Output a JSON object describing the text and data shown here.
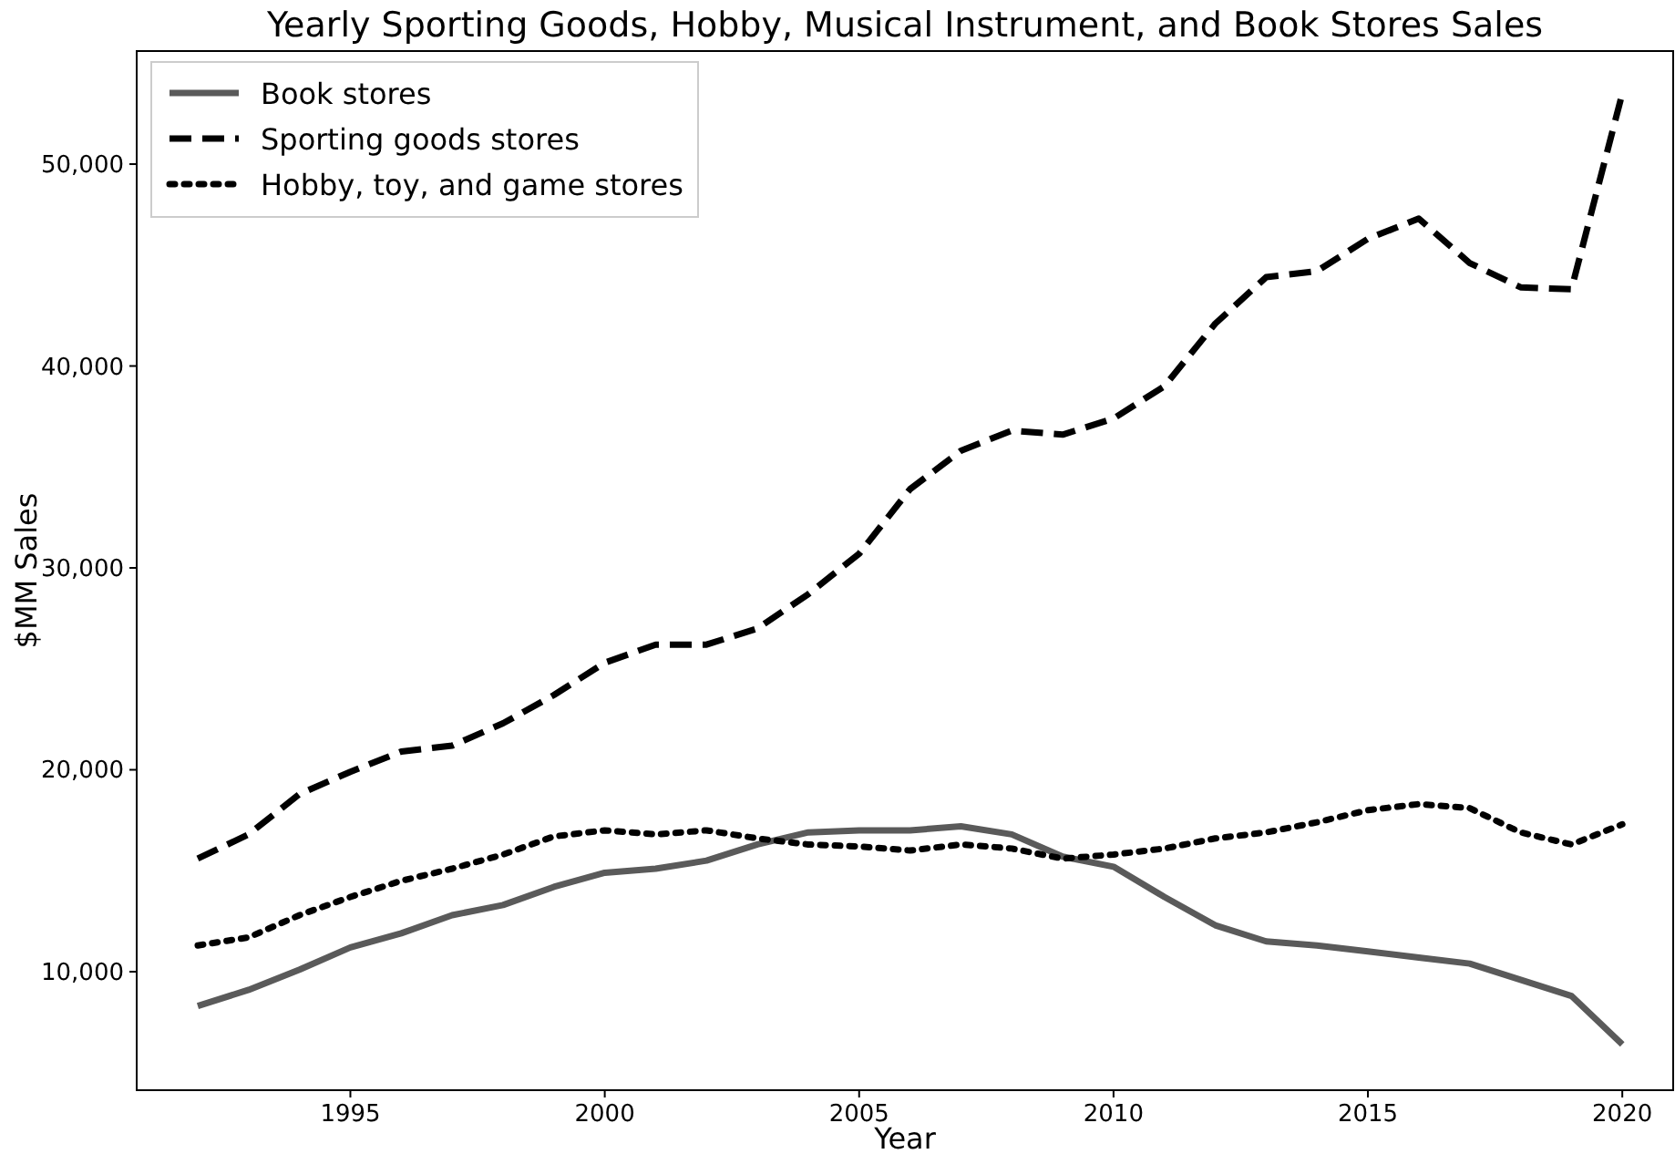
{
  "chart_data": {
    "type": "line",
    "title": "Yearly Sporting Goods, Hobby, Musical Instrument, and Book Stores Sales",
    "xlabel": "Year",
    "ylabel": "$MM Sales",
    "x": [
      1992,
      1993,
      1994,
      1995,
      1996,
      1997,
      1998,
      1999,
      2000,
      2001,
      2002,
      2003,
      2004,
      2005,
      2006,
      2007,
      2008,
      2009,
      2010,
      2011,
      2012,
      2013,
      2014,
      2015,
      2016,
      2017,
      2018,
      2019,
      2020
    ],
    "series": [
      {
        "name": "Book stores",
        "color": "#5a5a5a",
        "line_style": "solid",
        "values": [
          8300,
          9100,
          10100,
          11200,
          11900,
          12800,
          13300,
          14200,
          14900,
          15100,
          15500,
          16300,
          16900,
          17000,
          17000,
          17200,
          16800,
          15700,
          15200,
          13700,
          12300,
          11500,
          11300,
          11000,
          10700,
          10400,
          9600,
          8800,
          6400
        ]
      },
      {
        "name": "Sporting goods stores",
        "color": "#000000",
        "line_style": "dashed",
        "values": [
          15600,
          16800,
          18800,
          19900,
          20900,
          21200,
          22300,
          23700,
          25300,
          26200,
          26200,
          27000,
          28700,
          30700,
          33900,
          35800,
          36800,
          36600,
          37400,
          39000,
          42100,
          44400,
          44700,
          46300,
          47300,
          45100,
          43900,
          43800,
          53500
        ]
      },
      {
        "name": "Hobby, toy, and game stores",
        "color": "#000000",
        "line_style": "dotted",
        "values": [
          11300,
          11700,
          12800,
          13700,
          14500,
          15100,
          15800,
          16700,
          17000,
          16800,
          17000,
          16600,
          16300,
          16200,
          16000,
          16300,
          16100,
          15600,
          15800,
          16100,
          16600,
          16900,
          17400,
          18000,
          18300,
          18100,
          16900,
          16300,
          17300
        ]
      }
    ],
    "xlim": [
      1990.8,
      2021.0
    ],
    "xticks": [
      1995,
      2000,
      2005,
      2010,
      2015,
      2020
    ],
    "ylim": [
      4130,
      55600
    ],
    "yticks": [
      {
        "value": 10000,
        "label": "10,000"
      },
      {
        "value": 20000,
        "label": "20,000"
      },
      {
        "value": 30000,
        "label": "30,000"
      },
      {
        "value": 40000,
        "label": "40,000"
      },
      {
        "value": 50000,
        "label": "50,000"
      }
    ],
    "grid": false,
    "legend": "top left"
  }
}
